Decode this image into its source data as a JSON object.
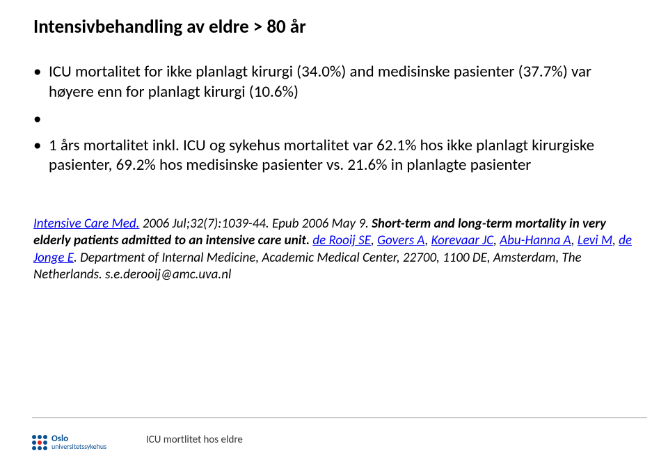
{
  "title": "Intensivbehandling av eldre  > 80 år",
  "bullets": [
    "ICU mortalitet for ikke planlagt kirurgi (34.0%) and medisinske pasienter (37.7%) var høyere enn for planlagt kirurgi (10.6%)",
    "1 års mortalitet inkl. ICU og sykehus mortalitet var 62.1% hos ikke planlagt kirurgiske pasienter,  69.2% hos medisinske pasienter vs. 21.6% in planlagte pasienter"
  ],
  "reference": {
    "journal_link": "Intensive Care Med.",
    "cite": " 2006 Jul;32(7):1039-44. Epub 2006 May 9. ",
    "article_title": "Short-term and long-term mortality in very elderly patients admitted to an intensive care unit. ",
    "authors": [
      "de Rooij SE",
      "Govers A",
      "Korevaar JC",
      "Abu-Hanna A",
      "Levi M",
      "de Jonge E"
    ],
    "affiliation": ". Department of Internal Medicine, Academic Medical Center, 22700, 1100 DE, Amsterdam, The Netherlands. s.e.derooij@amc.uva.nl"
  },
  "footer": {
    "logo_line1": "Oslo",
    "logo_line2": "universitetssykehus",
    "footer_title": "ICU mortlitet hos eldre"
  },
  "colors": {
    "link": "#0000ee",
    "text": "#000000",
    "logo_blue": "#0a4f8f",
    "divider": "#c9c9c9"
  }
}
